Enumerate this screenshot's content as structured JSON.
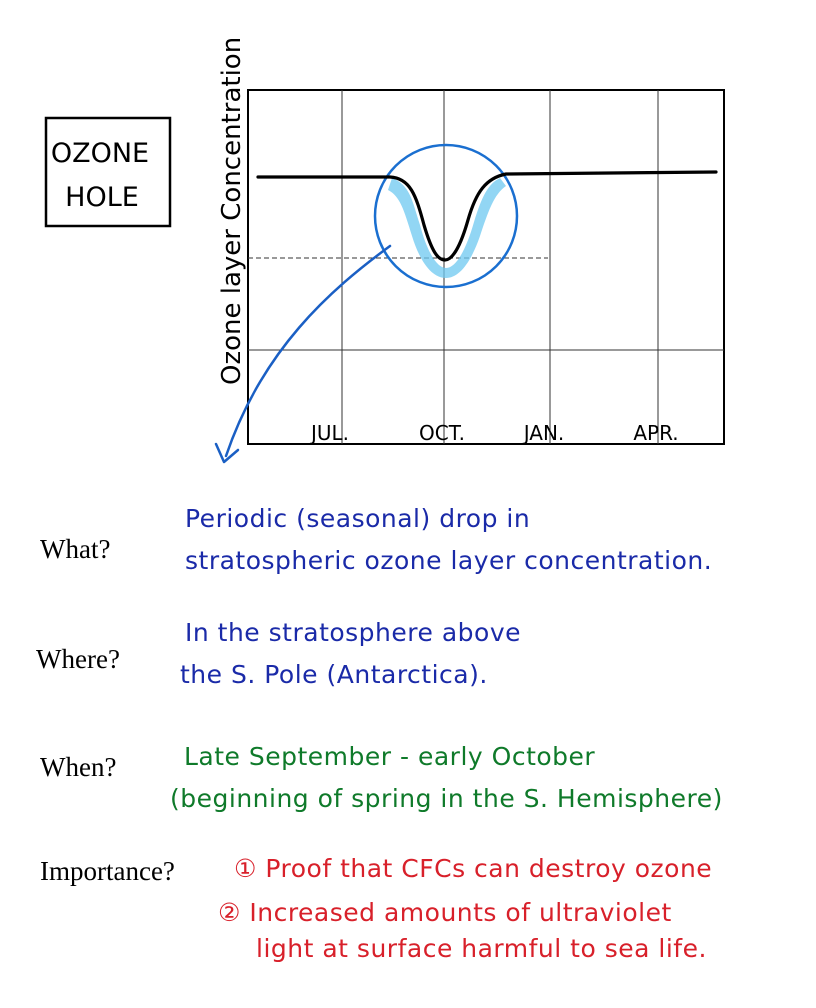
{
  "diagram": {
    "title_box": {
      "line1": "OZONE",
      "line2": "HOLE"
    },
    "y_axis_label": "Ozone layer Concentration",
    "x_ticks": [
      "JUL.",
      "OCT.",
      "JAN.",
      "APR."
    ]
  },
  "colors": {
    "ink": "#000000",
    "blue": "#1a5fc4",
    "blue_light": "#6ec8f0",
    "navy": "#1a2aa8",
    "green": "#0f7a2a",
    "red": "#d8202a"
  },
  "qa": {
    "what": {
      "label": "What?",
      "lines": [
        "Periodic (seasonal) drop in",
        "stratospheric ozone layer concentration."
      ]
    },
    "where": {
      "label": "Where?",
      "lines": [
        "In the stratosphere above",
        "the S. Pole (Antarctica)."
      ]
    },
    "when": {
      "label": "When?",
      "lines": [
        "Late September - early October",
        "(beginning of spring in the S. Hemisphere)"
      ]
    },
    "importance": {
      "label": "Importance?",
      "lines": [
        "① Proof that CFCs can destroy ozone",
        "② Increased amounts of ultraviolet",
        "light at surface harmful to sea life."
      ]
    }
  }
}
